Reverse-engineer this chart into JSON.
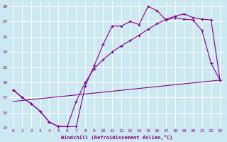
{
  "xlabel": "Windchill (Refroidissement éolien,°C)",
  "background_color": "#cce8f0",
  "grid_color": "#ffffff",
  "line_color": "#880088",
  "xlim": [
    -0.5,
    23.5
  ],
  "ylim": [
    13,
    29.5
  ],
  "yticks": [
    13,
    15,
    17,
    19,
    21,
    23,
    25,
    27,
    29
  ],
  "xticks": [
    0,
    1,
    2,
    3,
    4,
    5,
    6,
    7,
    8,
    9,
    10,
    11,
    12,
    13,
    14,
    15,
    16,
    17,
    18,
    19,
    20,
    21,
    22,
    23
  ],
  "line1_x": [
    0,
    1,
    2,
    3,
    4,
    5,
    6,
    7,
    8,
    9,
    10,
    11,
    12,
    13,
    14,
    15,
    16,
    17,
    18,
    19,
    20,
    21,
    22,
    23
  ],
  "line1_y": [
    18.0,
    17.0,
    16.2,
    15.2,
    13.8,
    13.2,
    13.2,
    13.2,
    18.5,
    21.2,
    24.0,
    26.4,
    26.4,
    27.0,
    26.6,
    29.0,
    28.4,
    27.2,
    27.5,
    27.3,
    27.2,
    25.8,
    21.5,
    19.3
  ],
  "line2_x": [
    0,
    1,
    2,
    3,
    4,
    5,
    6,
    7,
    8,
    9,
    10,
    11,
    12,
    13,
    14,
    15,
    16,
    17,
    18,
    19,
    20,
    21,
    22,
    23
  ],
  "line2_y": [
    18.0,
    17.0,
    16.2,
    15.2,
    13.8,
    13.2,
    13.2,
    16.5,
    19.0,
    20.8,
    22.0,
    23.0,
    23.8,
    24.5,
    25.2,
    26.0,
    26.7,
    27.3,
    27.7,
    28.0,
    27.5,
    27.3,
    27.2,
    19.3
  ],
  "line3_x": [
    0,
    23
  ],
  "line3_y": [
    16.5,
    19.3
  ]
}
